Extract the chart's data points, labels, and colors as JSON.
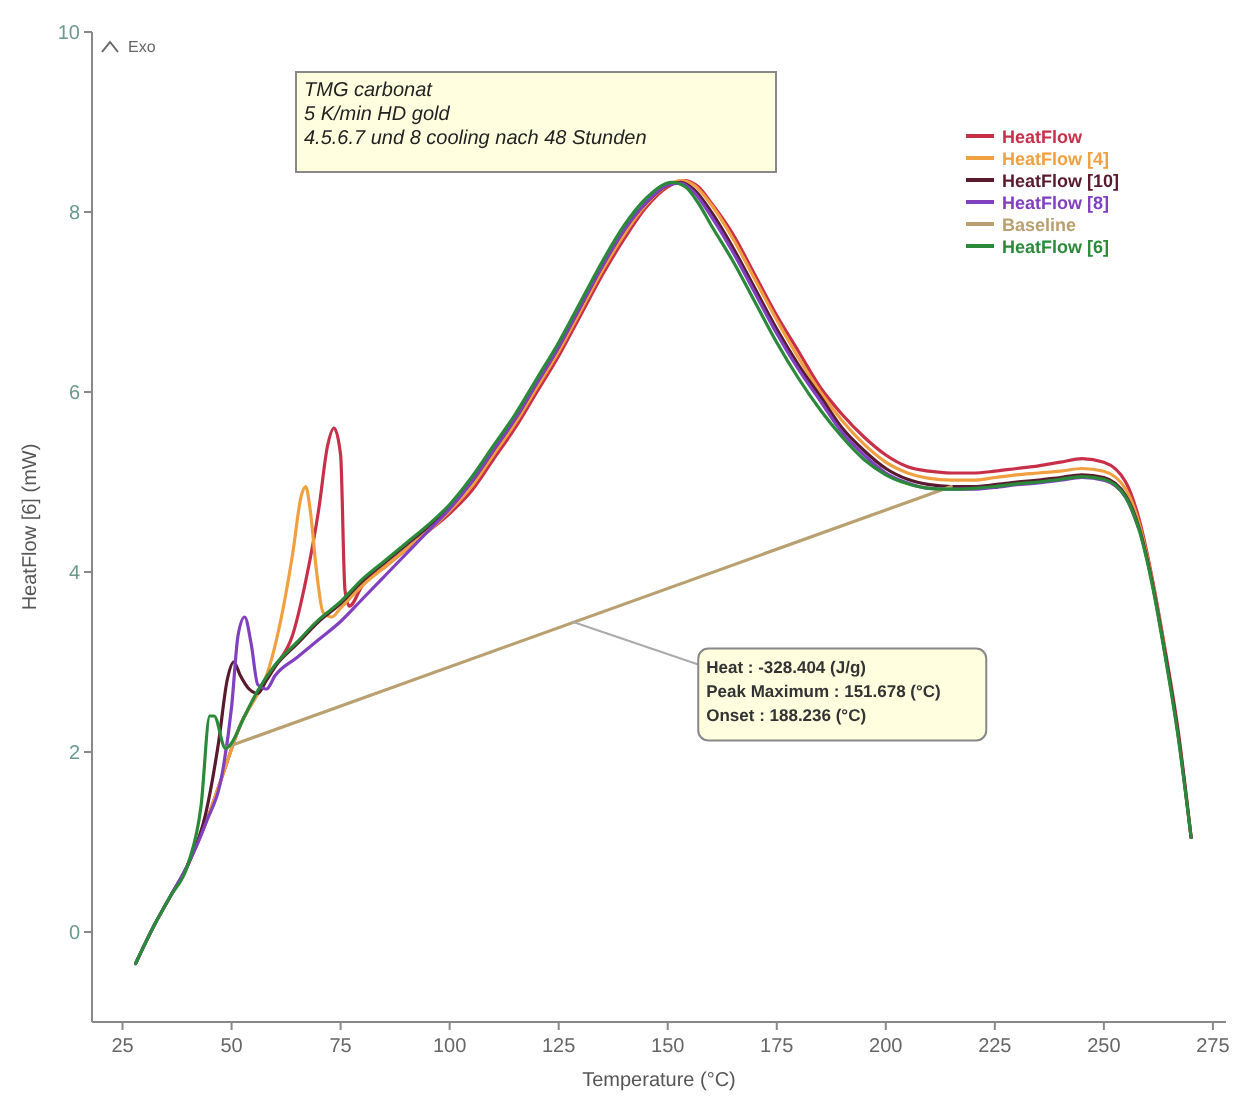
{
  "chart_data": {
    "type": "line",
    "xlabel": "Temperature (°C)",
    "ylabel": "HeatFlow [6] (mW)",
    "xlim": [
      18,
      278
    ],
    "ylim": [
      -1,
      10
    ],
    "xticks": [
      25,
      50,
      75,
      100,
      125,
      150,
      175,
      200,
      225,
      250,
      275
    ],
    "yticks": [
      0,
      2,
      4,
      6,
      8,
      10
    ],
    "grid": false,
    "legend": "top right",
    "line_style": "solid",
    "marker": "none",
    "annotations": [
      "Exo",
      "TMG carbonat",
      "5 K/min HD gold",
      "4.5.6.7 und 8 cooling nach 48 Stunden",
      {
        "text": "Heat : -328.404 (J/g)",
        "x": 128,
        "y": 3.45
      },
      "Peak Maximum : 151.678 (°C)",
      "Onset : 188.236 (°C)"
    ],
    "series": [
      {
        "name": "HeatFlow",
        "color": "#c8304a",
        "x": [
          40,
          44,
          48,
          52,
          56,
          60,
          64,
          67,
          70,
          72,
          73.5,
          75,
          76,
          77,
          80,
          85,
          90,
          95,
          100,
          105,
          110,
          115,
          120,
          125,
          130,
          135,
          140,
          145,
          150,
          154,
          157,
          160,
          165,
          170,
          175,
          180,
          185,
          190,
          195,
          200,
          205,
          210,
          215,
          220,
          225,
          230,
          235,
          240,
          245,
          250,
          255,
          258,
          261,
          264,
          267,
          270
        ],
        "values": [
          0.75,
          1.2,
          1.75,
          2.3,
          2.65,
          2.95,
          3.3,
          3.9,
          4.7,
          5.4,
          5.6,
          5.3,
          3.8,
          3.62,
          3.85,
          4.05,
          4.25,
          4.45,
          4.65,
          4.9,
          5.25,
          5.6,
          6.0,
          6.4,
          6.85,
          7.3,
          7.7,
          8.05,
          8.28,
          8.35,
          8.28,
          8.1,
          7.75,
          7.3,
          6.85,
          6.45,
          6.05,
          5.75,
          5.5,
          5.3,
          5.17,
          5.12,
          5.1,
          5.1,
          5.12,
          5.15,
          5.18,
          5.22,
          5.26,
          5.22,
          5.0,
          4.6,
          3.95,
          3.15,
          2.25,
          1.05
        ]
      },
      {
        "name": "HeatFlow [4]",
        "color": "#f0a040",
        "x": [
          40,
          44,
          48,
          52,
          56,
          58,
          61,
          64,
          66,
          67,
          68,
          69.5,
          71,
          73,
          75,
          80,
          85,
          90,
          95,
          100,
          105,
          110,
          115,
          120,
          125,
          130,
          135,
          140,
          145,
          150,
          153,
          156,
          160,
          165,
          170,
          175,
          180,
          185,
          190,
          195,
          200,
          205,
          210,
          215,
          220,
          225,
          230,
          235,
          240,
          245,
          250,
          255,
          258,
          261,
          264
        ],
        "values": [
          0.75,
          1.2,
          1.75,
          2.3,
          2.65,
          2.85,
          3.4,
          4.2,
          4.85,
          4.95,
          4.7,
          4.0,
          3.55,
          3.5,
          3.6,
          3.85,
          4.05,
          4.25,
          4.45,
          4.68,
          4.95,
          5.3,
          5.65,
          6.05,
          6.45,
          6.9,
          7.35,
          7.75,
          8.08,
          8.3,
          8.35,
          8.3,
          8.08,
          7.7,
          7.25,
          6.8,
          6.38,
          6.0,
          5.68,
          5.42,
          5.22,
          5.1,
          5.04,
          5.02,
          5.02,
          5.05,
          5.08,
          5.1,
          5.12,
          5.15,
          5.12,
          4.92,
          4.55,
          3.92,
          3.12
        ]
      },
      {
        "name": "HeatFlow [10]",
        "color": "#5a1a2e",
        "x": [
          28,
          32,
          36,
          40,
          44,
          47,
          49,
          50.5,
          52,
          54,
          56,
          58,
          60,
          65,
          70,
          75,
          80,
          85,
          90,
          95,
          100,
          105,
          110,
          115,
          120,
          125,
          130,
          135,
          140,
          145,
          150,
          153,
          156,
          160,
          165,
          170,
          175,
          180,
          185,
          190,
          195,
          200,
          205,
          210,
          215,
          220,
          225,
          230,
          235,
          240,
          245,
          250,
          255,
          258,
          261,
          264,
          267,
          270
        ],
        "values": [
          -0.35,
          0.05,
          0.4,
          0.75,
          1.3,
          2.1,
          2.8,
          3.0,
          2.85,
          2.7,
          2.65,
          2.8,
          2.95,
          3.2,
          3.45,
          3.65,
          3.9,
          4.1,
          4.3,
          4.5,
          4.72,
          5.0,
          5.35,
          5.7,
          6.1,
          6.5,
          6.95,
          7.4,
          7.8,
          8.1,
          8.3,
          8.33,
          8.25,
          8.0,
          7.6,
          7.15,
          6.7,
          6.3,
          5.95,
          5.6,
          5.35,
          5.15,
          5.03,
          4.97,
          4.95,
          4.95,
          4.97,
          5.0,
          5.02,
          5.05,
          5.08,
          5.05,
          4.85,
          4.5,
          3.9,
          3.1,
          2.2,
          1.05
        ]
      },
      {
        "name": "HeatFlow [8]",
        "color": "#8040c0",
        "x": [
          28,
          32,
          36,
          40,
          44,
          48,
          50,
          51.5,
          53,
          54.5,
          56,
          58,
          60,
          65,
          70,
          75,
          80,
          85,
          90,
          95,
          100,
          105,
          110,
          115,
          120,
          125,
          130,
          135,
          140,
          145,
          150,
          153,
          156,
          160,
          165,
          170,
          175,
          180,
          185,
          190,
          195,
          200,
          205,
          210,
          215,
          220,
          225,
          230,
          235,
          240,
          245,
          250,
          255,
          258
        ],
        "values": [
          -0.35,
          0.05,
          0.4,
          0.75,
          1.2,
          1.8,
          2.5,
          3.3,
          3.5,
          3.2,
          2.75,
          2.7,
          2.85,
          3.05,
          3.25,
          3.45,
          3.7,
          3.95,
          4.2,
          4.45,
          4.7,
          5.0,
          5.35,
          5.7,
          6.1,
          6.5,
          6.95,
          7.4,
          7.8,
          8.1,
          8.3,
          8.32,
          8.22,
          7.95,
          7.55,
          7.1,
          6.65,
          6.25,
          5.9,
          5.55,
          5.3,
          5.1,
          4.99,
          4.93,
          4.92,
          4.92,
          4.94,
          4.97,
          4.99,
          5.02,
          5.05,
          5.02,
          4.83,
          4.48
        ]
      },
      {
        "name": "Baseline",
        "color": "#b8a070",
        "x": [
          48.6,
          215
        ],
        "values": [
          2.05,
          4.95
        ]
      },
      {
        "name": "HeatFlow [6]",
        "color": "#2a8a3a",
        "x": [
          28,
          32,
          36,
          40,
          43,
          45,
          46,
          48.6,
          50,
          53,
          56,
          60,
          65,
          70,
          75,
          80,
          85,
          90,
          95,
          100,
          105,
          110,
          115,
          120,
          125,
          130,
          135,
          140,
          145,
          151,
          154,
          157,
          160,
          165,
          170,
          175,
          180,
          185,
          190,
          195,
          200,
          205,
          210,
          215,
          220,
          225,
          230,
          235,
          240,
          245,
          250,
          255,
          258,
          261,
          264,
          267,
          270
        ],
        "values": [
          -0.35,
          0.05,
          0.4,
          0.75,
          1.4,
          2.4,
          2.4,
          2.04,
          2.1,
          2.4,
          2.68,
          2.97,
          3.22,
          3.47,
          3.67,
          3.92,
          4.12,
          4.32,
          4.52,
          4.75,
          5.05,
          5.4,
          5.75,
          6.15,
          6.55,
          7.0,
          7.45,
          7.85,
          8.15,
          8.33,
          8.28,
          8.1,
          7.85,
          7.45,
          7.0,
          6.55,
          6.15,
          5.8,
          5.5,
          5.25,
          5.08,
          4.98,
          4.93,
          4.92,
          4.93,
          4.95,
          4.98,
          5.0,
          5.03,
          5.06,
          5.03,
          4.83,
          4.48,
          3.88,
          3.08,
          2.18,
          1.05
        ]
      }
    ]
  }
}
